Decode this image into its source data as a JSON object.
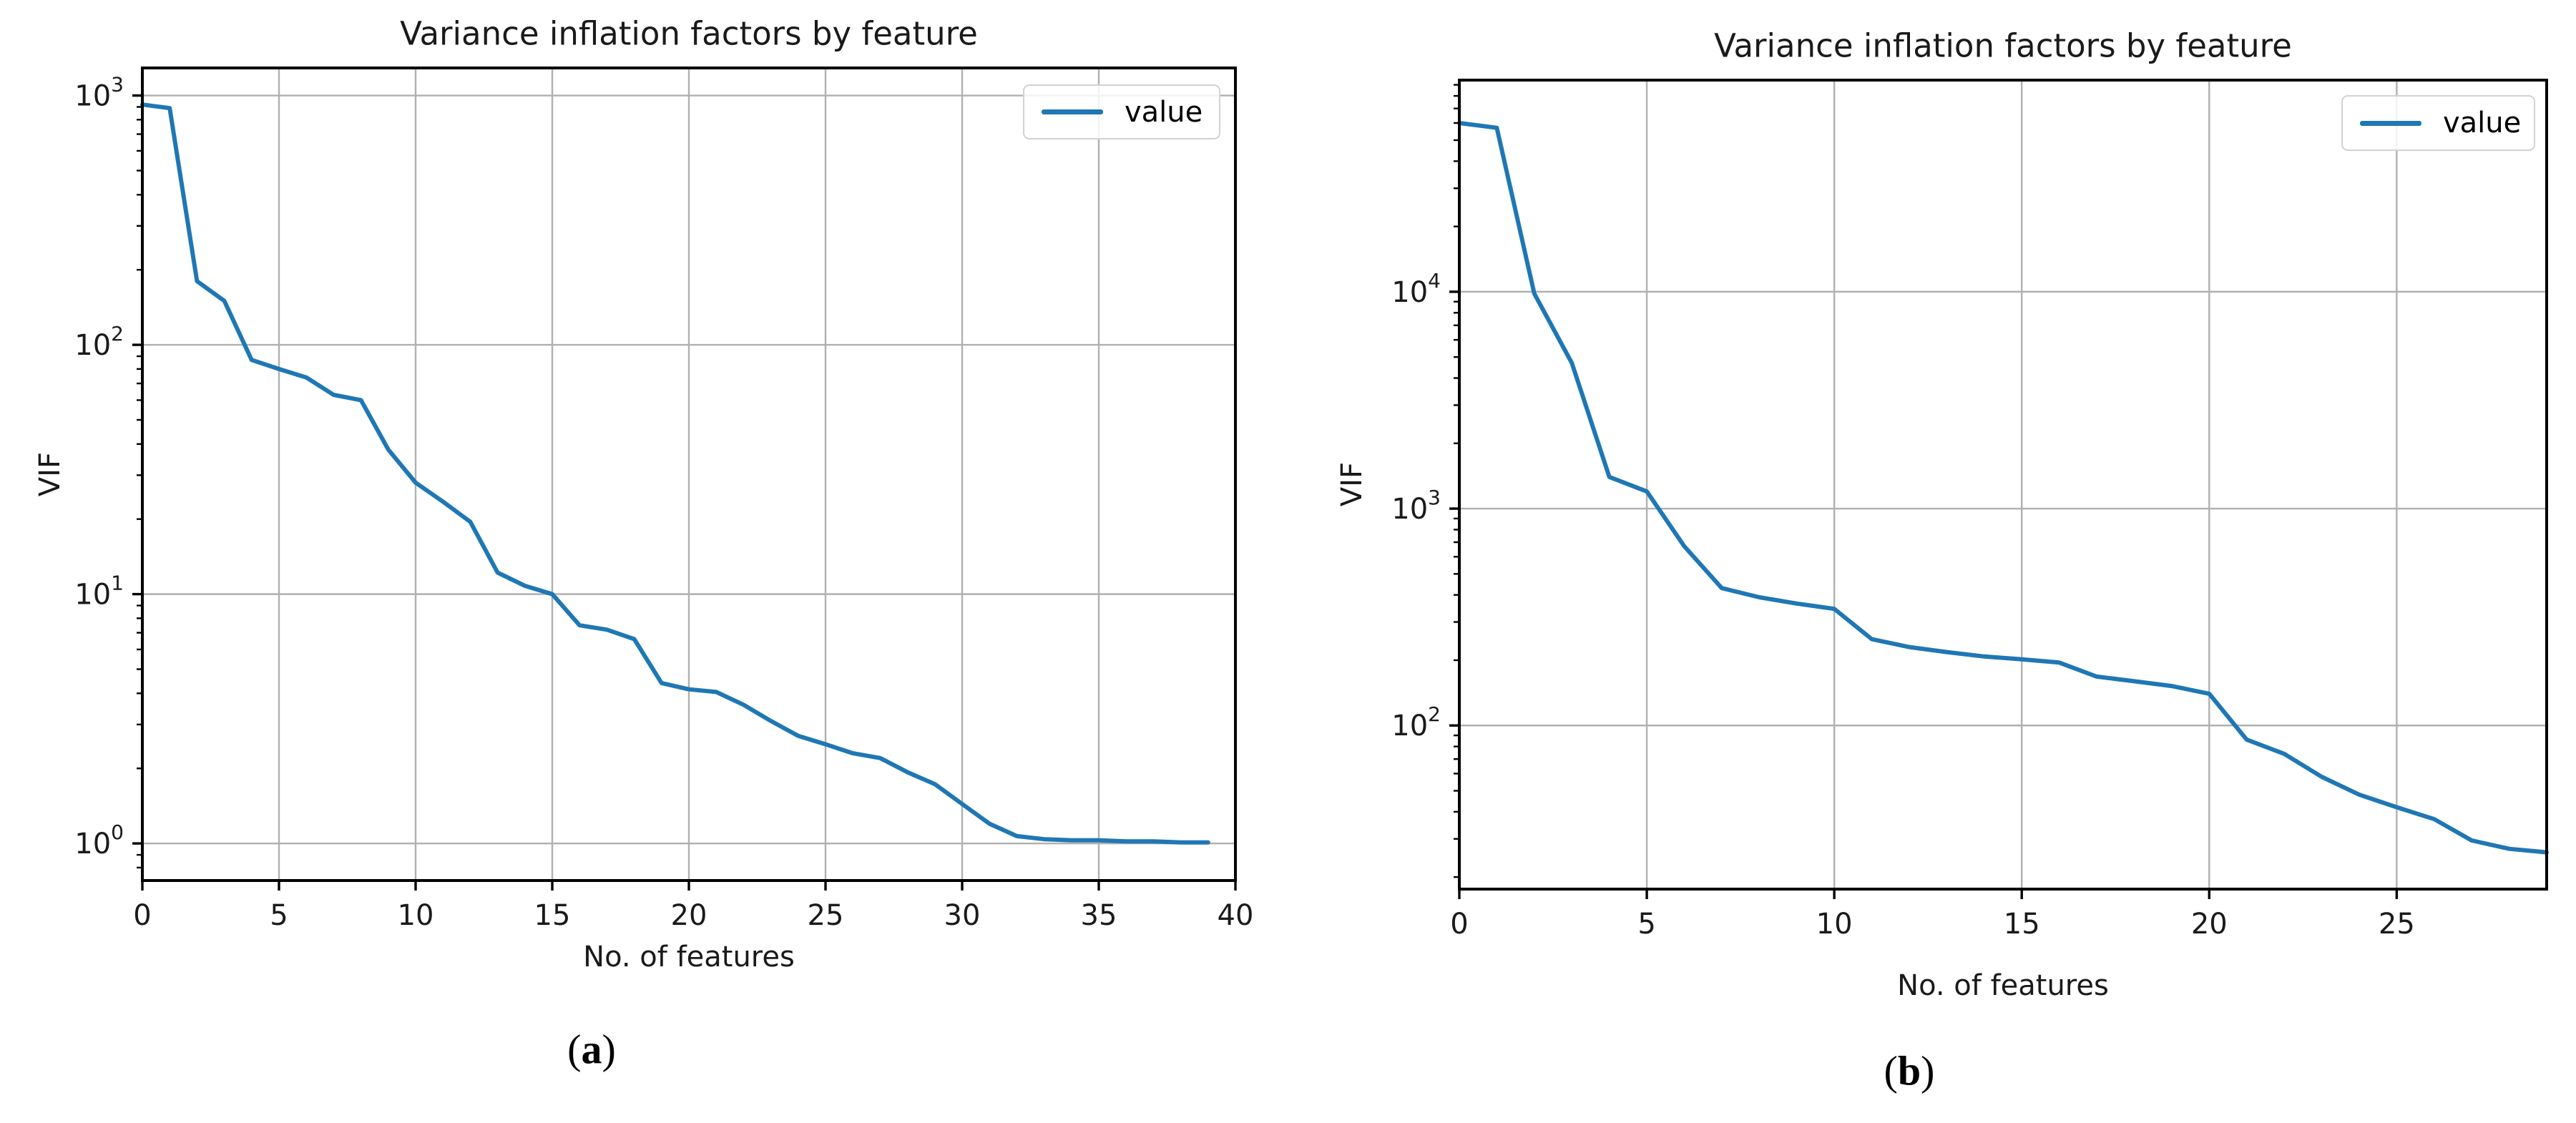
{
  "figure": {
    "background": "#ffffff"
  },
  "style": {
    "line_color": "#1f77b4",
    "grid_color": "#b0b0b0",
    "axis_color": "#000000",
    "text_color": "#1a1a1a"
  },
  "chart_data": [
    {
      "id": "a",
      "type": "line",
      "title": "Variance inflation factors by feature",
      "xlabel": "No. of features",
      "ylabel": "VIF",
      "caption": "(a)",
      "yscale": "log",
      "grid": true,
      "legend": {
        "entries": [
          "value"
        ],
        "position": "upper right"
      },
      "xlim": [
        0,
        40
      ],
      "ylim": [
        0.71,
        1290
      ],
      "xticks": [
        0,
        5,
        10,
        15,
        20,
        25,
        30,
        35,
        40
      ],
      "ytick_exponents": [
        0,
        1,
        2,
        3
      ],
      "series": [
        {
          "name": "value",
          "color": "#1f77b4",
          "x": [
            0,
            1,
            2,
            3,
            4,
            5,
            6,
            7,
            8,
            9,
            10,
            11,
            12,
            13,
            14,
            15,
            16,
            17,
            18,
            19,
            20,
            21,
            22,
            23,
            24,
            25,
            26,
            27,
            28,
            29,
            30,
            31,
            32,
            33,
            34,
            35,
            36,
            37,
            38,
            39
          ],
          "values": [
            920,
            890,
            180,
            150,
            87,
            80,
            74,
            63,
            60,
            38,
            28,
            23.5,
            19.5,
            12.2,
            10.8,
            10,
            7.5,
            7.2,
            6.6,
            4.4,
            4.15,
            4.05,
            3.6,
            3.1,
            2.7,
            2.5,
            2.3,
            2.2,
            1.93,
            1.73,
            1.44,
            1.2,
            1.07,
            1.04,
            1.03,
            1.03,
            1.02,
            1.02,
            1.01,
            1.01
          ]
        }
      ]
    },
    {
      "id": "b",
      "type": "line",
      "title": "Variance inflation factors by feature",
      "xlabel": "No. of features",
      "ylabel": "VIF",
      "caption": "(b)",
      "yscale": "log",
      "grid": true,
      "legend": {
        "entries": [
          "value"
        ],
        "position": "upper right"
      },
      "xlim": [
        0,
        29
      ],
      "ylim": [
        17.6,
        94600
      ],
      "xticks": [
        0,
        5,
        10,
        15,
        20,
        25
      ],
      "ytick_exponents": [
        2,
        3,
        4
      ],
      "series": [
        {
          "name": "value",
          "color": "#1f77b4",
          "x": [
            0,
            1,
            2,
            3,
            4,
            5,
            6,
            7,
            8,
            9,
            10,
            11,
            12,
            13,
            14,
            15,
            16,
            17,
            18,
            19,
            20,
            21,
            22,
            23,
            24,
            25,
            26,
            27,
            28,
            29
          ],
          "values": [
            60000,
            57000,
            9800,
            4700,
            1400,
            1200,
            670,
            430,
            390,
            365,
            345,
            250,
            230,
            218,
            208,
            202,
            195,
            168,
            160,
            152,
            140,
            86,
            74,
            58,
            48,
            42,
            37,
            29.5,
            27,
            26
          ]
        }
      ]
    }
  ]
}
